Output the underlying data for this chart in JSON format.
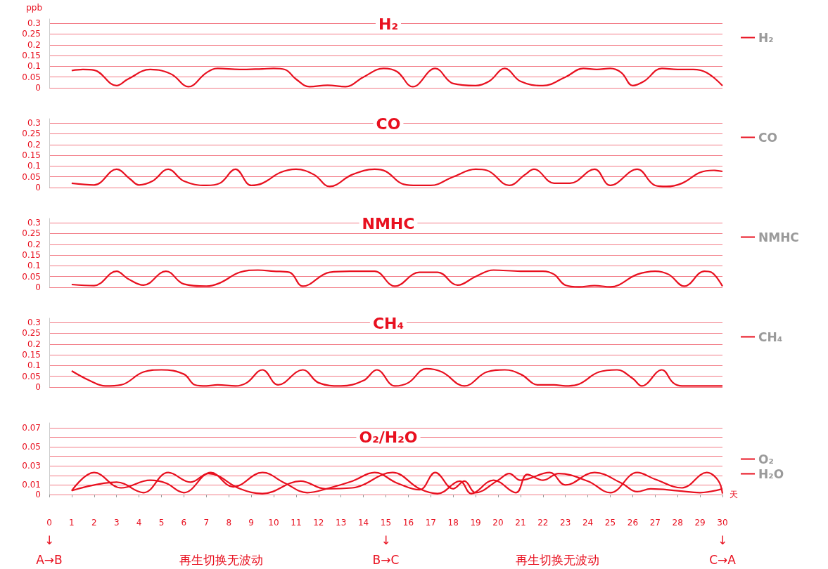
{
  "chart_data": [
    {
      "type": "line",
      "title": "H₂",
      "ylabel": "ppb",
      "xlim": [
        0,
        30
      ],
      "ylim": [
        0,
        0.32
      ],
      "yticks": [
        0,
        0.05,
        0.1,
        0.15,
        0.2,
        0.25,
        0.3
      ],
      "grid": "y",
      "legend": "right",
      "tick_labels": "y",
      "series": [
        {
          "name": "H₂",
          "color": "#e8101f",
          "x": [
            1,
            1.5,
            2,
            3,
            3.5,
            4.5,
            5,
            5.5,
            6.2,
            7,
            7.5,
            8.5,
            9.5,
            10,
            10.5,
            11,
            11.6,
            12.4,
            13.2,
            14,
            14.9,
            15.5,
            16.2,
            17.2,
            18,
            19,
            19.6,
            20.3,
            21,
            22,
            23,
            23.8,
            24.4,
            25,
            25.5,
            26,
            26.5,
            27.3,
            28,
            28.7,
            29.3,
            30
          ],
          "values": [
            0.08,
            0.085,
            0.082,
            0.01,
            0.04,
            0.085,
            0.08,
            0.06,
            0.005,
            0.07,
            0.09,
            0.085,
            0.088,
            0.09,
            0.085,
            0.04,
            0.005,
            0.012,
            0.005,
            0.05,
            0.09,
            0.075,
            0.005,
            0.09,
            0.02,
            0.01,
            0.03,
            0.09,
            0.03,
            0.01,
            0.05,
            0.09,
            0.085,
            0.09,
            0.07,
            0.01,
            0.03,
            0.09,
            0.085,
            0.085,
            0.07,
            0.01
          ]
        }
      ]
    },
    {
      "type": "line",
      "title": "CO",
      "xlim": [
        0,
        30
      ],
      "ylim": [
        0,
        0.32
      ],
      "yticks": [
        0,
        0.05,
        0.1,
        0.15,
        0.2,
        0.25,
        0.3
      ],
      "grid": "y",
      "legend": "right",
      "tick_labels": "y",
      "series": [
        {
          "name": "CO",
          "color": "#e8101f",
          "x": [
            1,
            2,
            3,
            3.6,
            4,
            4.6,
            5.3,
            6,
            7,
            7.6,
            8.3,
            9,
            9.5,
            10.3,
            11,
            11.8,
            12.5,
            13.5,
            14.5,
            15,
            15.8,
            16.4,
            17,
            18,
            19,
            19.5,
            20.5,
            21.2,
            21.6,
            22.5,
            23.2,
            24.3,
            25,
            26.2,
            27,
            27.5,
            28.2,
            29,
            29.6,
            30
          ],
          "values": [
            0.02,
            0.012,
            0.085,
            0.04,
            0.012,
            0.03,
            0.085,
            0.03,
            0.01,
            0.02,
            0.085,
            0.01,
            0.02,
            0.07,
            0.085,
            0.06,
            0.005,
            0.06,
            0.085,
            0.075,
            0.015,
            0.01,
            0.01,
            0.05,
            0.085,
            0.08,
            0.01,
            0.06,
            0.085,
            0.02,
            0.02,
            0.085,
            0.01,
            0.085,
            0.01,
            0.005,
            0.02,
            0.07,
            0.08,
            0.075
          ]
        }
      ]
    },
    {
      "type": "line",
      "title": "NMHC",
      "xlim": [
        0,
        30
      ],
      "ylim": [
        0,
        0.32
      ],
      "yticks": [
        0,
        0.05,
        0.1,
        0.15,
        0.2,
        0.25,
        0.3
      ],
      "grid": "y",
      "legend": "right",
      "tick_labels": "y",
      "series": [
        {
          "name": "NMHC",
          "color": "#e8101f",
          "x": [
            1,
            2,
            3,
            3.5,
            4.2,
            5.2,
            6,
            7,
            7.6,
            8.5,
            9.3,
            10,
            10.7,
            11.3,
            12.5,
            13.4,
            14,
            14.5,
            15.4,
            16.5,
            17.3,
            18.2,
            19,
            19.8,
            21,
            22,
            22.5,
            23,
            23.6,
            24.3,
            25,
            26.2,
            27,
            27.6,
            28.3,
            29.2,
            29.5,
            30
          ],
          "values": [
            0.013,
            0.008,
            0.075,
            0.04,
            0.01,
            0.075,
            0.015,
            0.005,
            0.02,
            0.07,
            0.08,
            0.075,
            0.07,
            0.005,
            0.07,
            0.075,
            0.075,
            0.075,
            0.005,
            0.07,
            0.07,
            0.01,
            0.05,
            0.08,
            0.075,
            0.075,
            0.06,
            0.01,
            0.002,
            0.008,
            0.002,
            0.06,
            0.075,
            0.06,
            0.005,
            0.075,
            0.07,
            0.005
          ]
        }
      ]
    },
    {
      "type": "line",
      "title": "CH₄",
      "xlim": [
        0,
        30
      ],
      "ylim": [
        0,
        0.32
      ],
      "yticks": [
        0,
        0.05,
        0.1,
        0.15,
        0.2,
        0.25,
        0.3
      ],
      "grid": "y",
      "legend": "right",
      "tick_labels": "y",
      "series": [
        {
          "name": "CH₄",
          "color": "#e8101f",
          "x": [
            1,
            1.8,
            2.5,
            3.2,
            4.2,
            5,
            6,
            6.5,
            7,
            7.5,
            8.3,
            8.8,
            9.5,
            10.2,
            11.3,
            12,
            13,
            14,
            14.6,
            15.4,
            16,
            16.8,
            17.5,
            18.5,
            19.5,
            20.3,
            21,
            21.8,
            22.5,
            23,
            23.5,
            24.5,
            25.3,
            26,
            26.4,
            27.3,
            27.8,
            28.2,
            30
          ],
          "values": [
            0.075,
            0.03,
            0.005,
            0.01,
            0.07,
            0.08,
            0.06,
            0.01,
            0.005,
            0.01,
            0.005,
            0.02,
            0.08,
            0.01,
            0.08,
            0.02,
            0.005,
            0.03,
            0.08,
            0.005,
            0.02,
            0.085,
            0.07,
            0.005,
            0.07,
            0.08,
            0.06,
            0.01,
            0.01,
            0.005,
            0.01,
            0.07,
            0.08,
            0.04,
            0.005,
            0.08,
            0.02,
            0.005,
            0.005
          ]
        }
      ]
    },
    {
      "type": "line",
      "title": "O₂/H₂O",
      "xlabel": "天",
      "xlim": [
        0,
        30
      ],
      "xticks": [
        0,
        1,
        2,
        3,
        4,
        5,
        6,
        7,
        8,
        9,
        10,
        11,
        12,
        13,
        14,
        15,
        16,
        17,
        18,
        19,
        20,
        21,
        22,
        23,
        24,
        25,
        26,
        27,
        28,
        29,
        30
      ],
      "ylim": [
        0,
        0.075
      ],
      "yticks": [
        0,
        0.01,
        {
          "value": 0.02,
          "label": null
        },
        0.03,
        {
          "value": 0.04,
          "label": null
        },
        0.05,
        {
          "value": 0.06,
          "label": null
        },
        0.07
      ],
      "grid": "y",
      "legend": "right",
      "annotations": [
        "↓\nA→B",
        "再生切换无波动",
        "↓\nB→C",
        "再生切换无波动",
        "↓\nC→A"
      ],
      "series": [
        {
          "name": "O₂",
          "color": "#e8101f",
          "x": [
            1,
            2,
            3.2,
            4.5,
            5.2,
            6,
            7.2,
            8.2,
            9.5,
            10.5,
            11.5,
            12.5,
            13.5,
            14.5,
            15.5,
            16.5,
            17.2,
            18,
            18.5,
            19,
            20,
            20.5,
            21,
            22.3,
            23,
            24.3,
            25.5,
            26.2,
            26.8,
            28,
            29,
            30
          ],
          "values": [
            0.004,
            0.023,
            0.007,
            0.015,
            0.012,
            0.002,
            0.023,
            0.008,
            0.023,
            0.012,
            0.002,
            0.007,
            0.014,
            0.023,
            0.012,
            0.005,
            0.023,
            0.006,
            0.014,
            0.002,
            0.015,
            0.022,
            0.015,
            0.023,
            0.01,
            0.023,
            0.012,
            0.003,
            0.006,
            0.004,
            0.002,
            0.006
          ]
        },
        {
          "name": "H₂O",
          "color": "#e8101f",
          "x": [
            1,
            3,
            4.2,
            5.3,
            6.3,
            7.1,
            8.5,
            9.5,
            11.2,
            12.3,
            13.5,
            15.3,
            16.5,
            17.3,
            18.3,
            18.8,
            19.8,
            20.8,
            21.3,
            22,
            22.7,
            24,
            25,
            26.2,
            27,
            28.2,
            29.3,
            29.8,
            30
          ],
          "values": [
            0.004,
            0.013,
            0.002,
            0.023,
            0.013,
            0.022,
            0.006,
            0.001,
            0.014,
            0.006,
            0.007,
            0.023,
            0.006,
            0.001,
            0.014,
            0.001,
            0.015,
            0.002,
            0.021,
            0.015,
            0.022,
            0.014,
            0.002,
            0.023,
            0.016,
            0.007,
            0.023,
            0.015,
            0.001
          ]
        }
      ]
    }
  ]
}
